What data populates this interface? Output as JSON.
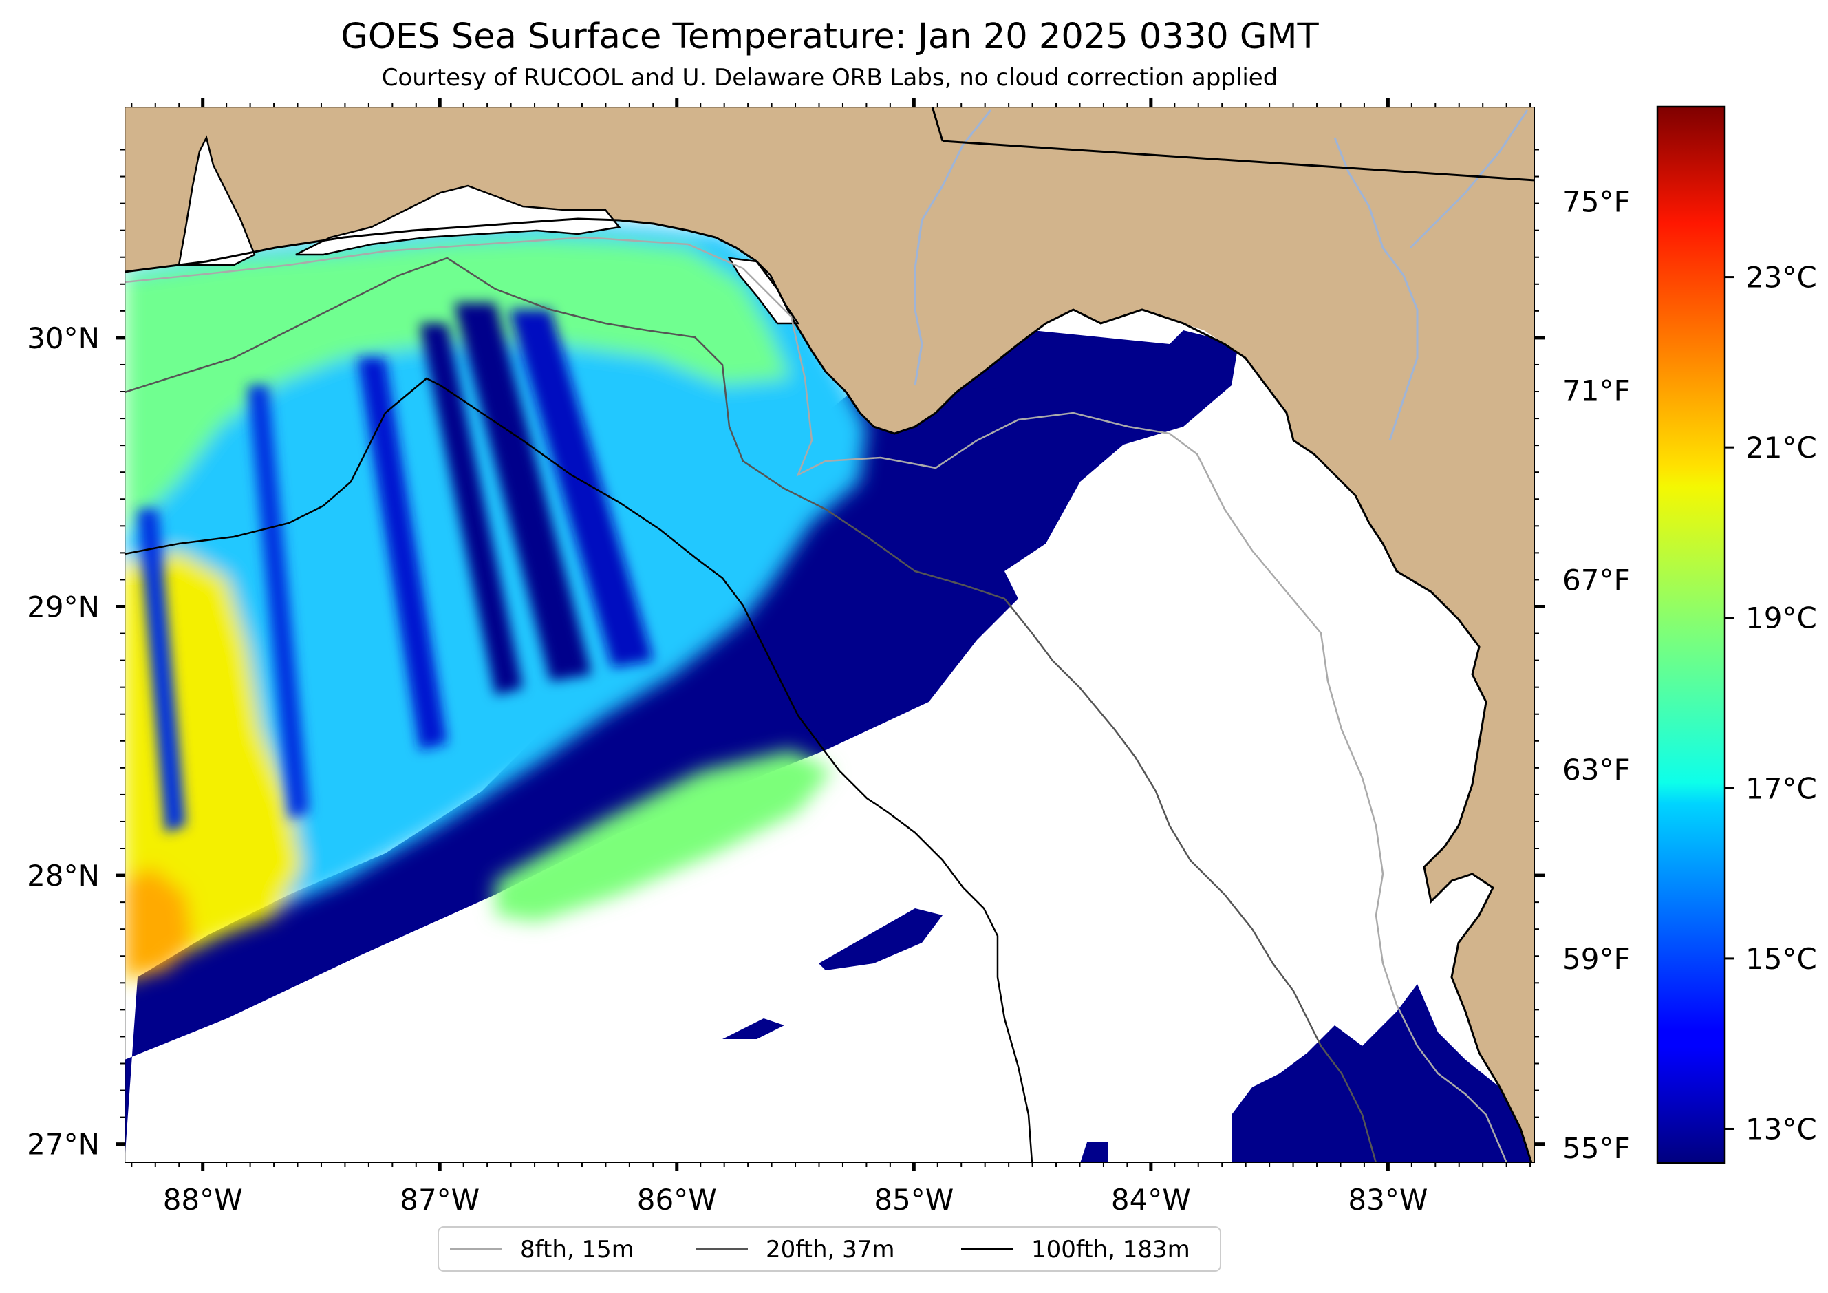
{
  "chart_data": {
    "type": "heatmap",
    "title": "GOES Sea Surface Temperature: Jan 20 2025 0330 GMT",
    "subtitle": "Courtesy of RUCOOL and U. Delaware ORB Labs, no cloud correction applied",
    "xlabel": "",
    "ylabel": "",
    "lon_range": [
      -88.33,
      -82.38
    ],
    "lat_range": [
      26.93,
      30.86
    ],
    "x_ticks": [
      {
        "value": -88,
        "label": "88°W"
      },
      {
        "value": -87,
        "label": "87°W"
      },
      {
        "value": -86,
        "label": "86°W"
      },
      {
        "value": -85,
        "label": "85°W"
      },
      {
        "value": -84,
        "label": "84°W"
      },
      {
        "value": -83,
        "label": "83°W"
      }
    ],
    "y_ticks": [
      {
        "value": 27,
        "label": "27°N"
      },
      {
        "value": 28,
        "label": "28°N"
      },
      {
        "value": 29,
        "label": "29°N"
      },
      {
        "value": 30,
        "label": "30°N"
      }
    ],
    "right_axis_ticks_F": [
      {
        "value": 55,
        "label": "55°F"
      },
      {
        "value": 59,
        "label": "59°F"
      },
      {
        "value": 63,
        "label": "63°F"
      },
      {
        "value": 67,
        "label": "67°F"
      },
      {
        "value": 71,
        "label": "71°F"
      },
      {
        "value": 75,
        "label": "75°F"
      }
    ],
    "colorbar": {
      "colormap": "jet",
      "range_C": [
        12.6,
        25.0
      ],
      "ticks": [
        {
          "value": 13,
          "label": "13°C"
        },
        {
          "value": 15,
          "label": "15°C"
        },
        {
          "value": 17,
          "label": "17°C"
        },
        {
          "value": 19,
          "label": "19°C"
        },
        {
          "value": 21,
          "label": "21°C"
        },
        {
          "value": 23,
          "label": "23°C"
        }
      ]
    },
    "legend": {
      "placement": "bottom-center",
      "entries": [
        {
          "label": "8fth, 15m",
          "color": "#aaaaaa"
        },
        {
          "label": "20fth, 37m",
          "color": "#555555"
        },
        {
          "label": "100fth, 183m",
          "color": "#000000"
        }
      ]
    },
    "colors": {
      "land": "#d2b48c",
      "cold_water": "#00008b",
      "no_data": "#ffffff",
      "rivers": "#9fb4d6"
    },
    "sst_regions_C": [
      {
        "region": "western shelf, 88.3–87.7°W, 27.5–29°N",
        "value": 21.5
      },
      {
        "region": "central shelf bands, 87.5–86°W",
        "value": 17.5
      },
      {
        "region": "shelf edge streaks, 87–86°W, 29–29.9°N",
        "value": 13.5
      },
      {
        "region": "offshore band, 28.6–27.5°N",
        "value": 12.8
      },
      {
        "region": "coastal water, 30.1–30.2°N",
        "value": 18.5
      },
      {
        "region": "southeast shelf, 83.6–82.4°W, 27°N",
        "value": 12.8
      }
    ]
  }
}
